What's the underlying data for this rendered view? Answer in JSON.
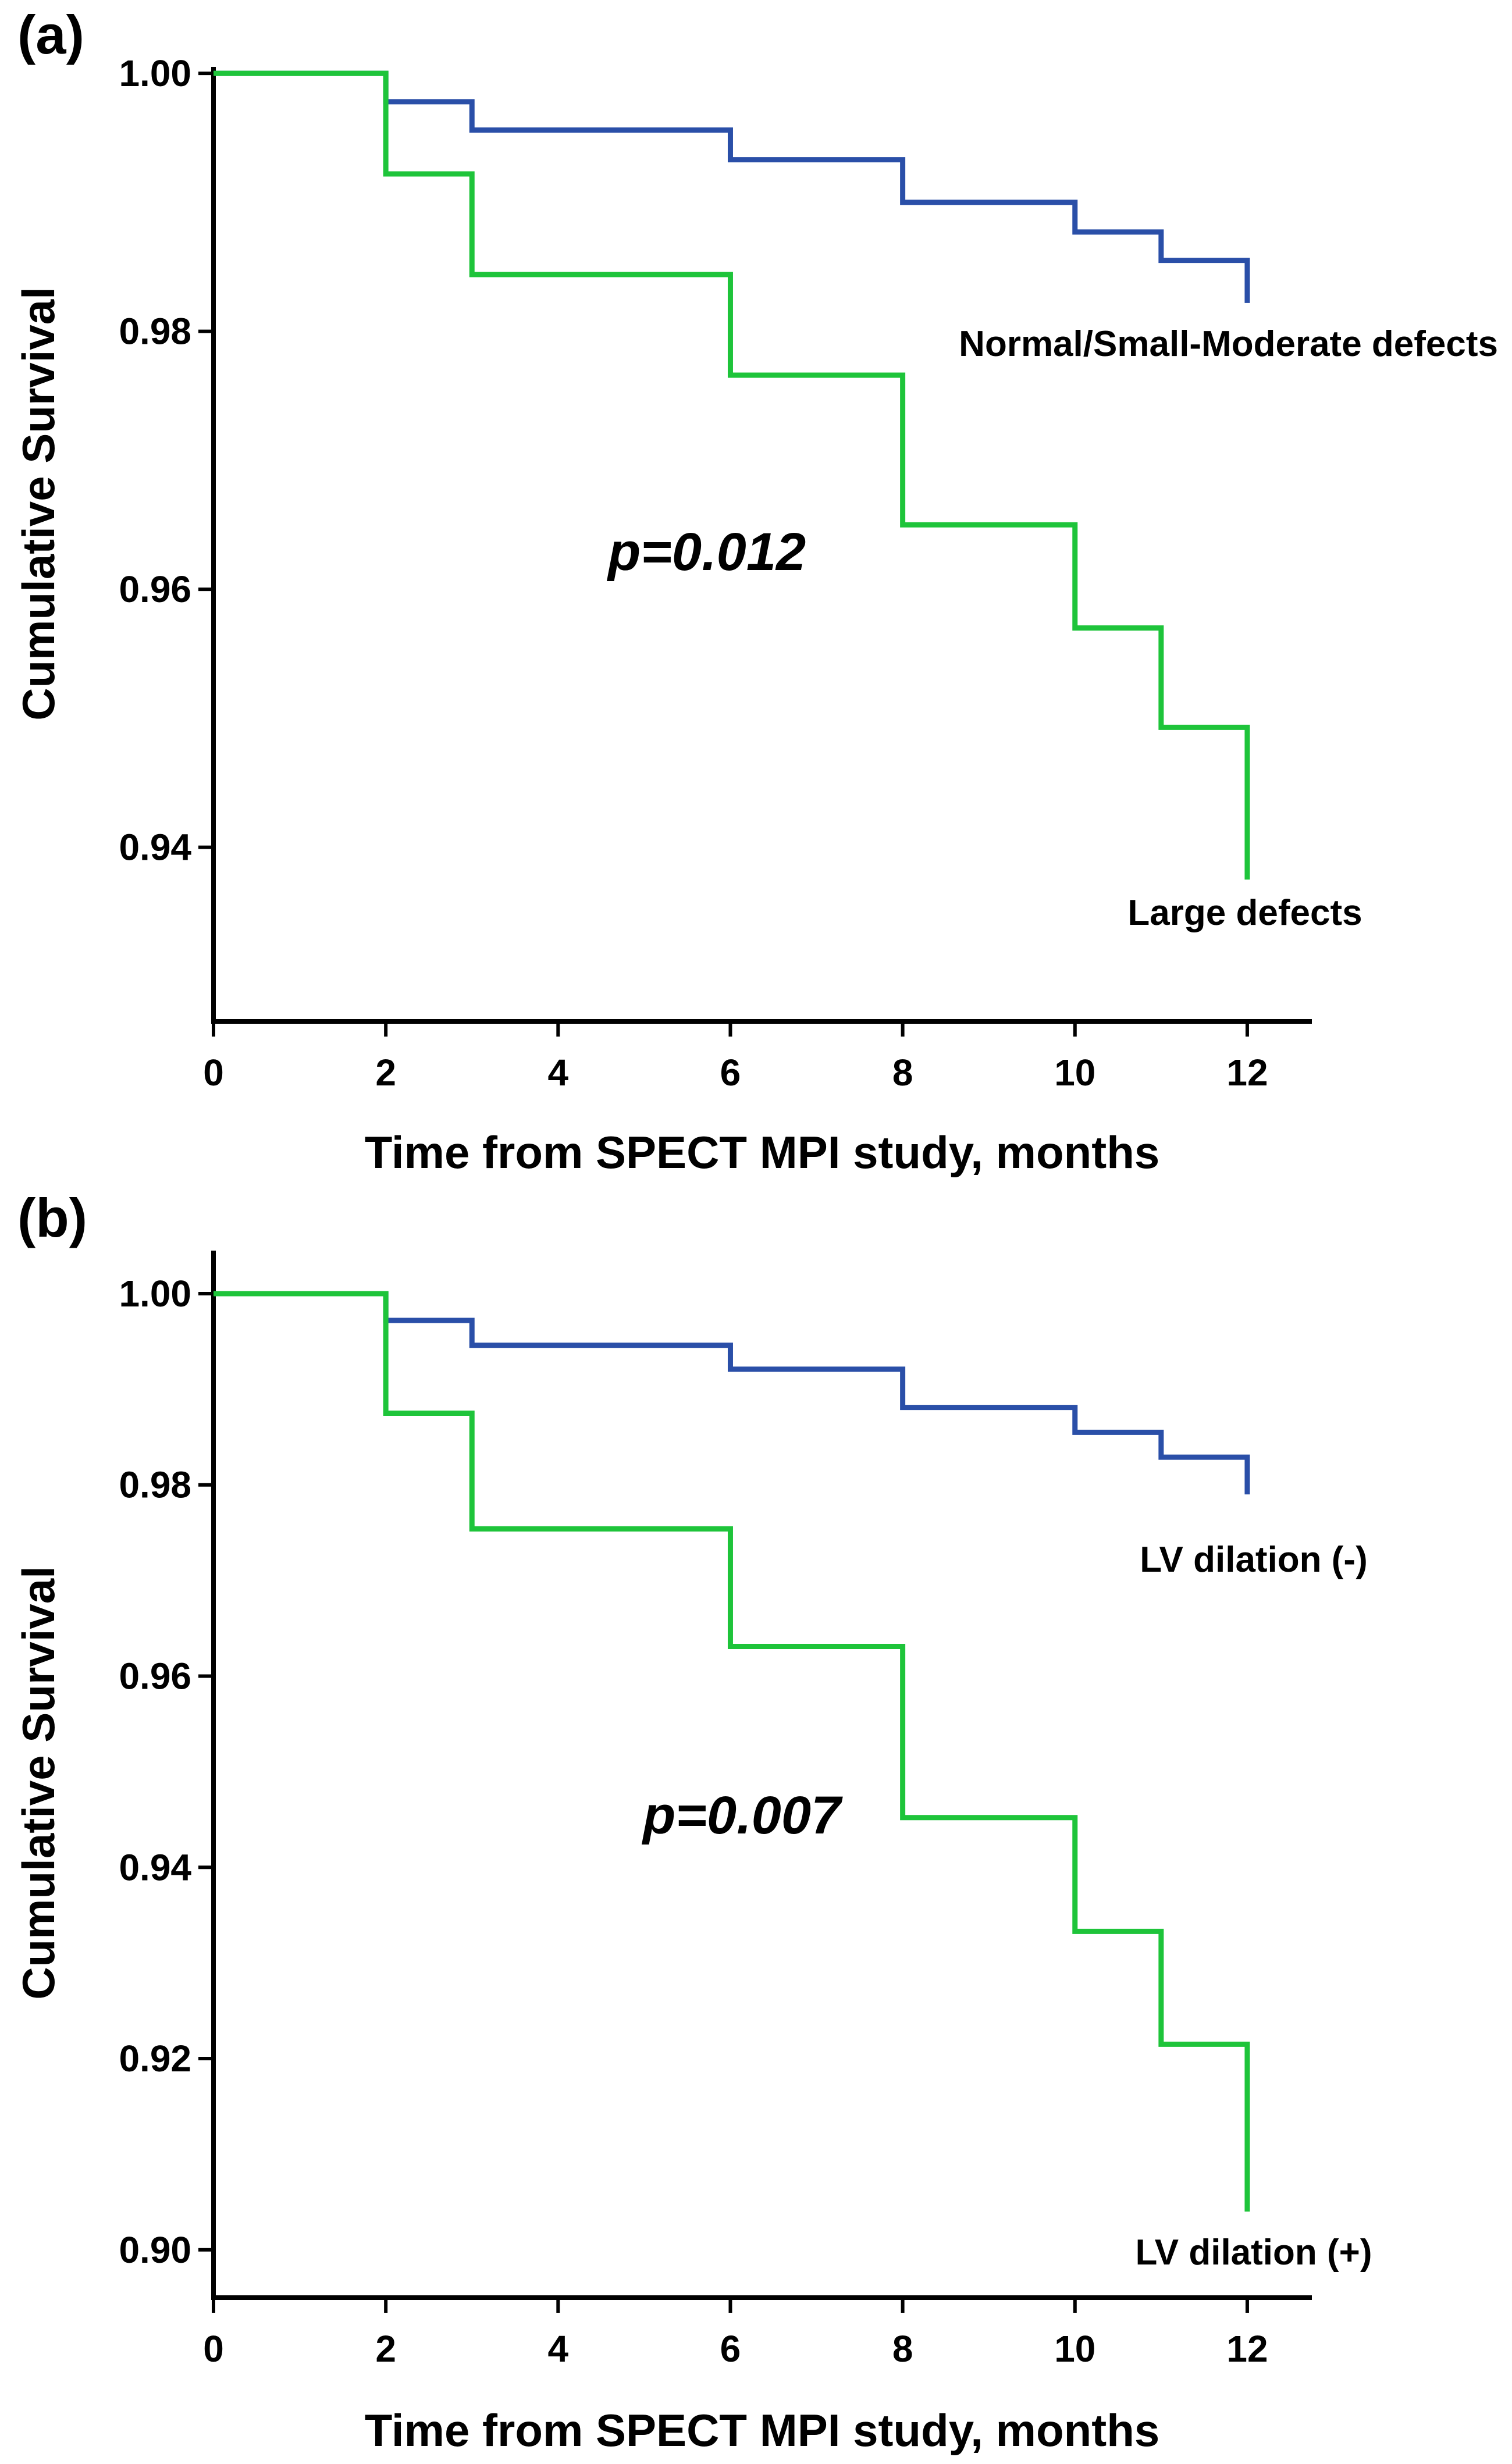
{
  "colors": {
    "series_blue": "#2a4fa8",
    "series_green": "#1ec43a",
    "axis": "#000000"
  },
  "chart_data": [
    {
      "panel": "(a)",
      "type": "line",
      "step": true,
      "xlabel": "Time from SPECT MPI study, months",
      "ylabel": "Cumulative Survival",
      "xlim": [
        0,
        12.75
      ],
      "ylim": [
        0.9265,
        1.0005
      ],
      "xticks": [
        0,
        2,
        4,
        6,
        8,
        10,
        12
      ],
      "xtick_labels": [
        "0",
        "2",
        "4",
        "6",
        "8",
        "10",
        "12"
      ],
      "yticks": [
        0.94,
        0.96,
        0.98,
        1.0
      ],
      "ytick_labels": [
        "0.94",
        "0.96",
        "0.98",
        "1.00"
      ],
      "annotation": "p=0.012",
      "series": [
        {
          "name": "Normal/Small-Moderate defects",
          "label": "Normal/Small-Moderate defects",
          "color": "#2a4fa8",
          "x": [
            0,
            2,
            3,
            6,
            8,
            10,
            11,
            12
          ],
          "y": [
            1.0,
            0.9978,
            0.9956,
            0.9933,
            0.99,
            0.9877,
            0.9855,
            0.9822
          ]
        },
        {
          "name": "Large defects",
          "label": "Large defects",
          "color": "#1ec43a",
          "x": [
            0,
            2,
            3,
            6,
            8,
            10,
            11,
            12
          ],
          "y": [
            1.0,
            0.9922,
            0.9844,
            0.9766,
            0.965,
            0.957,
            0.9493,
            0.9375
          ]
        }
      ]
    },
    {
      "panel": "(b)",
      "type": "line",
      "step": true,
      "xlabel": "Time from SPECT MPI study, months",
      "ylabel": "Cumulative Survival",
      "xlim": [
        0,
        12.75
      ],
      "ylim": [
        0.895,
        1.0045
      ],
      "xticks": [
        0,
        2,
        4,
        6,
        8,
        10,
        12
      ],
      "xtick_labels": [
        "0",
        "2",
        "4",
        "6",
        "8",
        "10",
        "12"
      ],
      "yticks": [
        0.9,
        0.92,
        0.94,
        0.96,
        0.98,
        1.0
      ],
      "ytick_labels": [
        "0.90",
        "0.92",
        "0.94",
        "0.96",
        "0.98",
        "1.00"
      ],
      "annotation": "p=0.007",
      "series": [
        {
          "name": "LV dilation (-)",
          "label": "LV dilation (-)",
          "color": "#2a4fa8",
          "x": [
            0,
            2,
            3,
            6,
            8,
            10,
            11,
            12
          ],
          "y": [
            1.0,
            0.9972,
            0.9946,
            0.9921,
            0.9881,
            0.9855,
            0.9829,
            0.979
          ]
        },
        {
          "name": "LV dilation (+)",
          "label": "LV dilation (+)",
          "color": "#1ec43a",
          "x": [
            0,
            2,
            3,
            6,
            8,
            10,
            11,
            12
          ],
          "y": [
            1.0,
            0.9875,
            0.9754,
            0.9631,
            0.9452,
            0.9333,
            0.9215,
            0.904
          ]
        }
      ]
    }
  ]
}
